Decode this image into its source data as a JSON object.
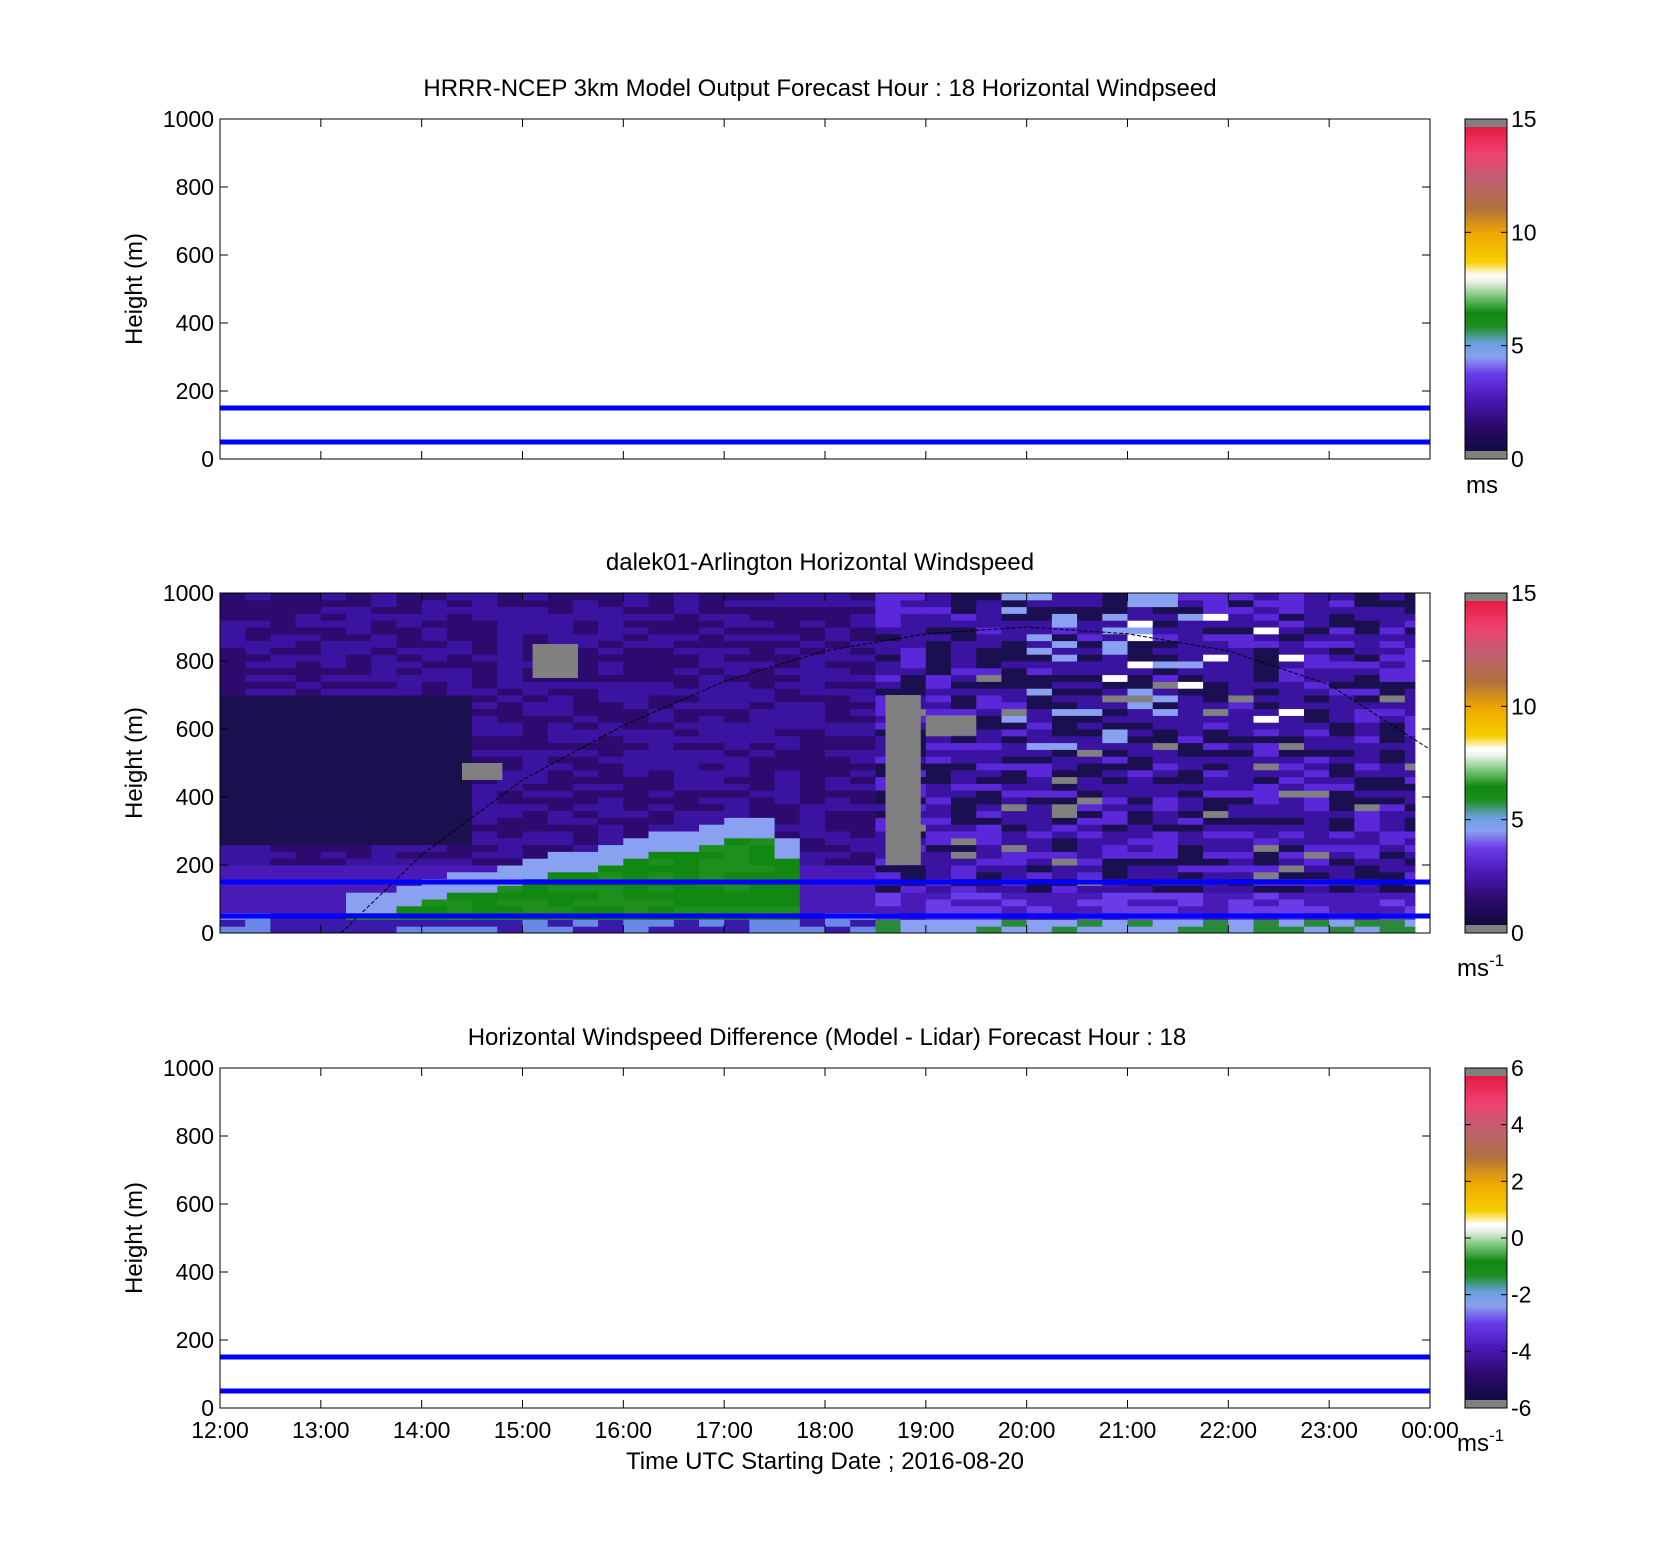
{
  "chart_data": [
    {
      "type": "heatmap",
      "title": "HRRR-NCEP 3km Model Output   Forecast Hour : 18 Horizontal Windpseed",
      "ylabel": "Height (m)",
      "xlabel": "",
      "ylim": [
        0,
        1000
      ],
      "yticks": [
        "0",
        "200",
        "400",
        "600",
        "800",
        "1000"
      ],
      "xlim_hours": [
        12,
        24
      ],
      "data": "none shown",
      "reference_lines": [
        {
          "y": 50,
          "color": "#0000ff"
        },
        {
          "y": 150,
          "color": "#0000ff"
        }
      ],
      "colorbar": {
        "range": [
          0,
          15
        ],
        "ticks": [
          "0",
          "5",
          "10",
          "15"
        ],
        "unit_base": "ms",
        "unit_exp": ""
      }
    },
    {
      "type": "heatmap",
      "title": "dalek01-Arlington  Horizontal Windspeed",
      "ylabel": "Height (m)",
      "xlabel": "",
      "ylim": [
        0,
        1000
      ],
      "yticks": [
        "0",
        "200",
        "400",
        "600",
        "800",
        "1000"
      ],
      "xlim_hours": [
        12,
        24
      ],
      "data_until_hour": 23.85,
      "reference_lines": [
        {
          "y": 50,
          "color": "#0000ff"
        },
        {
          "y": 150,
          "color": "#0000ff"
        }
      ],
      "boundary_layer_curve": [
        {
          "t": 13.2,
          "h": 0
        },
        {
          "t": 14,
          "h": 230
        },
        {
          "t": 15,
          "h": 450
        },
        {
          "t": 16,
          "h": 610
        },
        {
          "t": 17,
          "h": 740
        },
        {
          "t": 18,
          "h": 830
        },
        {
          "t": 19,
          "h": 880
        },
        {
          "t": 20,
          "h": 900
        },
        {
          "t": 21,
          "h": 880
        },
        {
          "t": 22,
          "h": 830
        },
        {
          "t": 23,
          "h": 730
        },
        {
          "t": 24,
          "h": 540
        }
      ],
      "colorbar": {
        "range": [
          0,
          15
        ],
        "ticks": [
          "0",
          "5",
          "10",
          "15"
        ],
        "unit_base": "ms",
        "unit_exp": "-1"
      }
    },
    {
      "type": "heatmap",
      "title": "Horizontal Windspeed Difference (Model - Lidar) Forecast Hour : 18",
      "ylabel": "Height (m)",
      "xlabel": "Time UTC  Starting Date ; 2016-08-20",
      "ylim": [
        0,
        1000
      ],
      "yticks": [
        "0",
        "200",
        "400",
        "600",
        "800",
        "1000"
      ],
      "xlim_hours": [
        12,
        24
      ],
      "xticks": [
        "12:00",
        "13:00",
        "14:00",
        "15:00",
        "16:00",
        "17:00",
        "18:00",
        "19:00",
        "20:00",
        "21:00",
        "22:00",
        "23:00",
        "00:00"
      ],
      "data": "none shown",
      "reference_lines": [
        {
          "y": 50,
          "color": "#0000ff"
        },
        {
          "y": 150,
          "color": "#0000ff"
        }
      ],
      "colorbar": {
        "range": [
          -6,
          6
        ],
        "ticks": [
          "-6",
          "-4",
          "-2",
          "0",
          "2",
          "4",
          "6"
        ],
        "unit_base": "ms",
        "unit_exp": "-1"
      }
    }
  ],
  "colors": {
    "reference_line": "#0000ff",
    "colormap": [
      "#808080",
      "#0a0a30",
      "#2c0a6e",
      "#4a1ab8",
      "#6a3ce8",
      "#8aa0f0",
      "#6aa0e0",
      "#1e8e1e",
      "#118811",
      "#7ec87e",
      "#e8f0e8",
      "#ffffff",
      "#f5d000",
      "#f0a800",
      "#b07040",
      "#c06070",
      "#f04070",
      "#e01030",
      "#808080"
    ]
  }
}
